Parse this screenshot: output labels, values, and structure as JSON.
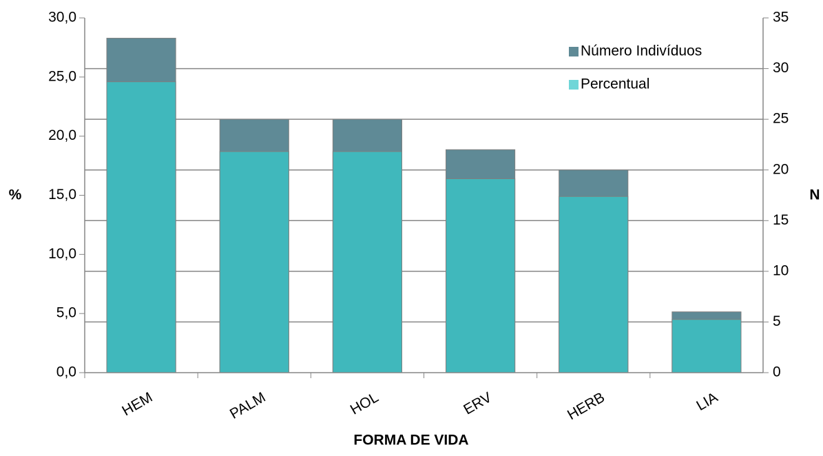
{
  "chart_data": {
    "type": "bar",
    "title": null,
    "xlabel": "FORMA DE VIDA",
    "ylabel": "%",
    "y2label": "N",
    "categories": [
      "HEM",
      "PALM",
      "HOL",
      "ERV",
      "HERB",
      "LIA"
    ],
    "series": [
      {
        "name": "Número Indivíduos",
        "color": "#5f8a96",
        "axis": "y2",
        "values": [
          33,
          25,
          25,
          22,
          20,
          6
        ]
      },
      {
        "name": "Percentual",
        "color": "#40b8bc",
        "values": [
          24.6,
          18.7,
          18.7,
          16.4,
          14.9,
          4.5
        ]
      }
    ],
    "ylim": [
      0,
      30
    ],
    "yticks": [
      {
        "value": 0,
        "label": "0,0"
      },
      {
        "value": 5,
        "label": "5,0"
      },
      {
        "value": 10,
        "label": "10,0"
      },
      {
        "value": 15,
        "label": "15,0"
      },
      {
        "value": 20,
        "label": "20,0"
      },
      {
        "value": 25,
        "label": "25,0"
      },
      {
        "value": 30,
        "label": "30,0"
      }
    ],
    "y2lim": [
      0,
      35
    ],
    "y2ticks": [
      0,
      5,
      10,
      15,
      20,
      25,
      30,
      35
    ],
    "grid": true,
    "legend": "upper right"
  }
}
